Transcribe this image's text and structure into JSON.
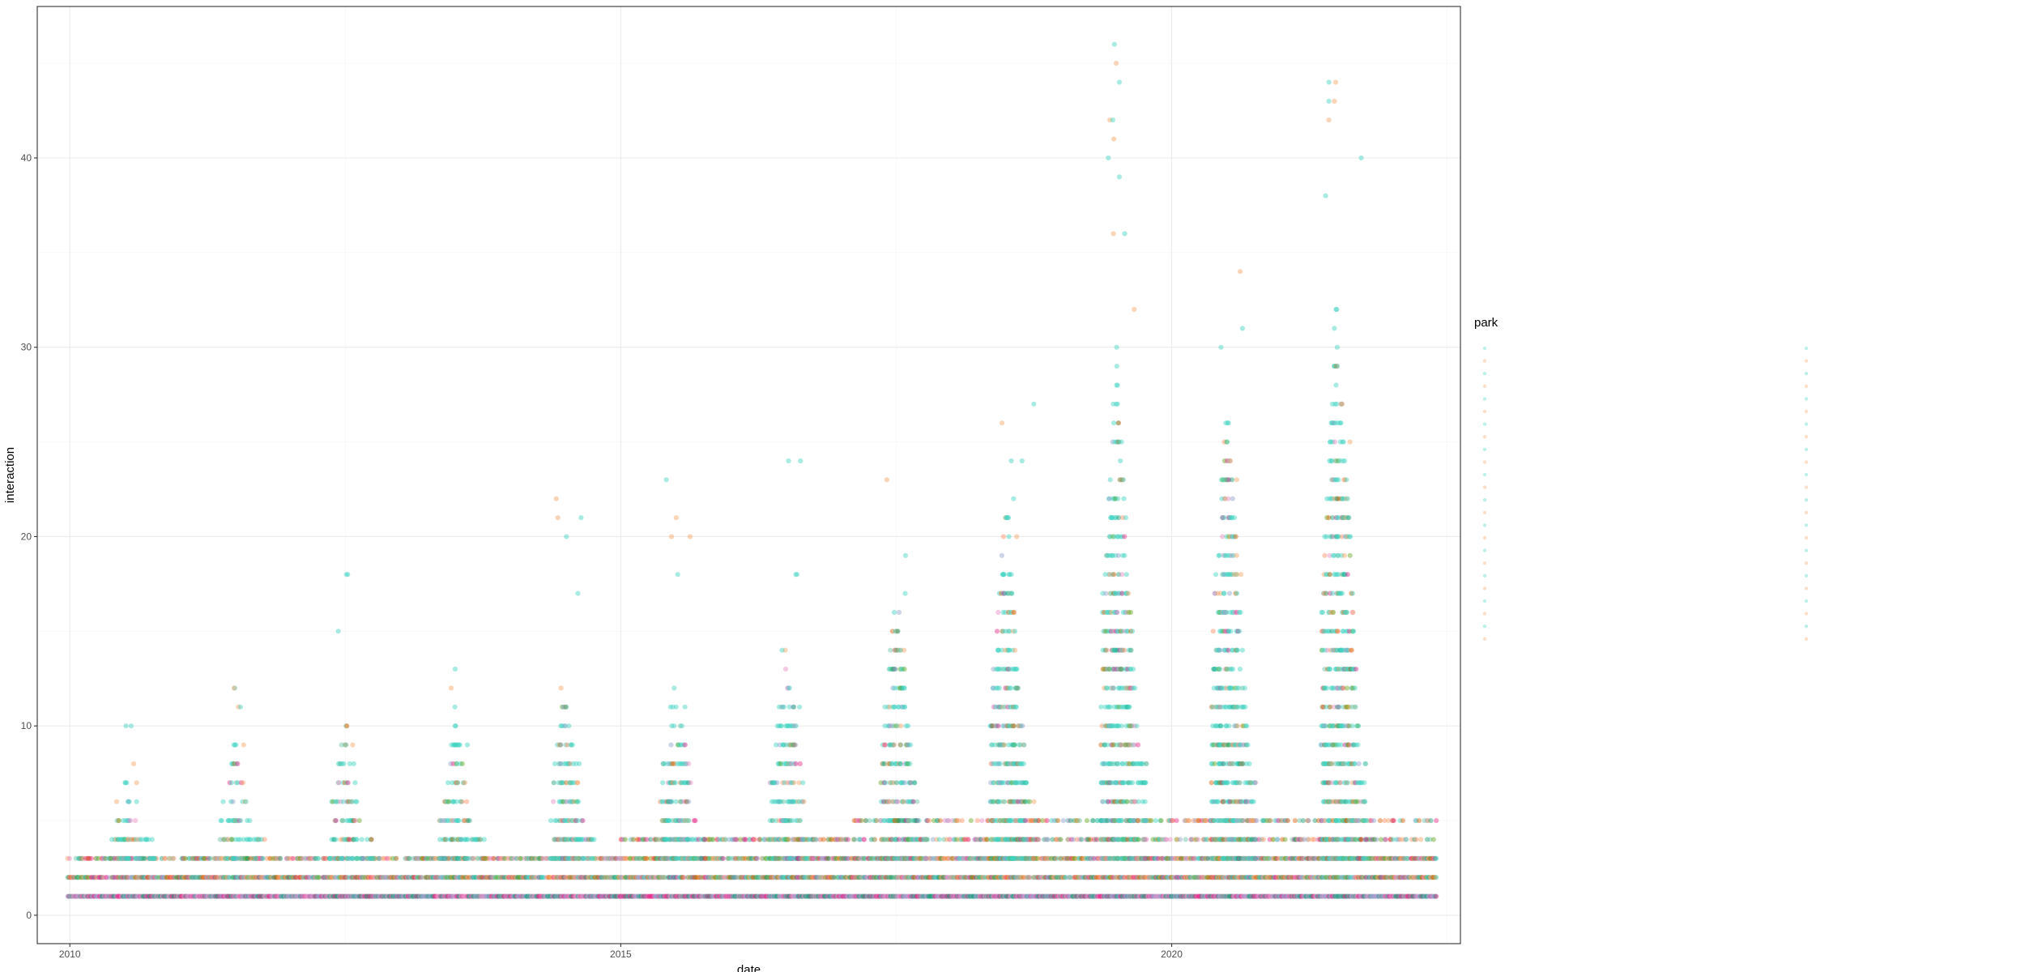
{
  "chart_data": {
    "type": "scatter",
    "title": "",
    "xlabel": "date",
    "ylabel": "interaction",
    "xlim": [
      "2009-09-15",
      "2022-08-15"
    ],
    "ylim": [
      -1.5,
      48
    ],
    "x_ticks": [
      {
        "label": "2010",
        "value": "2010-01-01"
      },
      {
        "label": "2015",
        "value": "2015-01-01"
      },
      {
        "label": "2020",
        "value": "2020-01-01"
      }
    ],
    "y_ticks": [
      0,
      10,
      20,
      30,
      40
    ],
    "grid": true,
    "legend": {
      "title": "park",
      "position": "right",
      "entries": []
    },
    "series_colors": [
      "#66C2A5",
      "#FC8D62",
      "#8DA0CB",
      "#E78AC3",
      "#1B9E77",
      "#D95F02",
      "#66A61E",
      "#E7298A",
      "#3FD3C0",
      "#F4A261"
    ],
    "point_opacity": 0.45,
    "seasons": [
      {
        "year": 2010,
        "max": 11,
        "spread": 7
      },
      {
        "year": 2011,
        "max": 14,
        "spread": 9
      },
      {
        "year": 2012,
        "max": 18,
        "spread": 10
      },
      {
        "year": 2013,
        "max": 15,
        "spread": 10
      },
      {
        "year": 2014,
        "max": 22,
        "spread": 12
      },
      {
        "year": 2015,
        "max": 23,
        "spread": 13
      },
      {
        "year": 2016,
        "max": 24,
        "spread": 14
      },
      {
        "year": 2017,
        "max": 23,
        "spread": 17
      },
      {
        "year": 2018,
        "max": 27,
        "spread": 22
      },
      {
        "year": 2019,
        "max": 46,
        "spread": 30
      },
      {
        "year": 2020,
        "max": 34,
        "spread": 28
      },
      {
        "year": 2021,
        "max": 44,
        "spread": 33
      }
    ],
    "outliers": [
      {
        "x": "2019-06-25",
        "y": 46
      },
      {
        "x": "2019-06-10",
        "y": 42
      },
      {
        "x": "2019-06-20",
        "y": 42
      },
      {
        "x": "2019-06-05",
        "y": 40
      },
      {
        "x": "2019-06-22",
        "y": 36
      },
      {
        "x": "2021-06-05",
        "y": 44
      },
      {
        "x": "2021-06-05",
        "y": 43
      },
      {
        "x": "2021-06-05",
        "y": 42
      },
      {
        "x": "2021-09-20",
        "y": 40
      },
      {
        "x": "2021-05-25",
        "y": 38
      },
      {
        "x": "2020-08-15",
        "y": 34
      },
      {
        "x": "2016-07-10",
        "y": 24
      },
      {
        "x": "2015-06-01",
        "y": 23
      },
      {
        "x": "2014-06-01",
        "y": 22
      },
      {
        "x": "2014-07-05",
        "y": 20
      },
      {
        "x": "2012-07-10",
        "y": 18
      },
      {
        "x": "2017-06-01",
        "y": 23
      },
      {
        "x": "2018-10-01",
        "y": 27
      }
    ]
  }
}
